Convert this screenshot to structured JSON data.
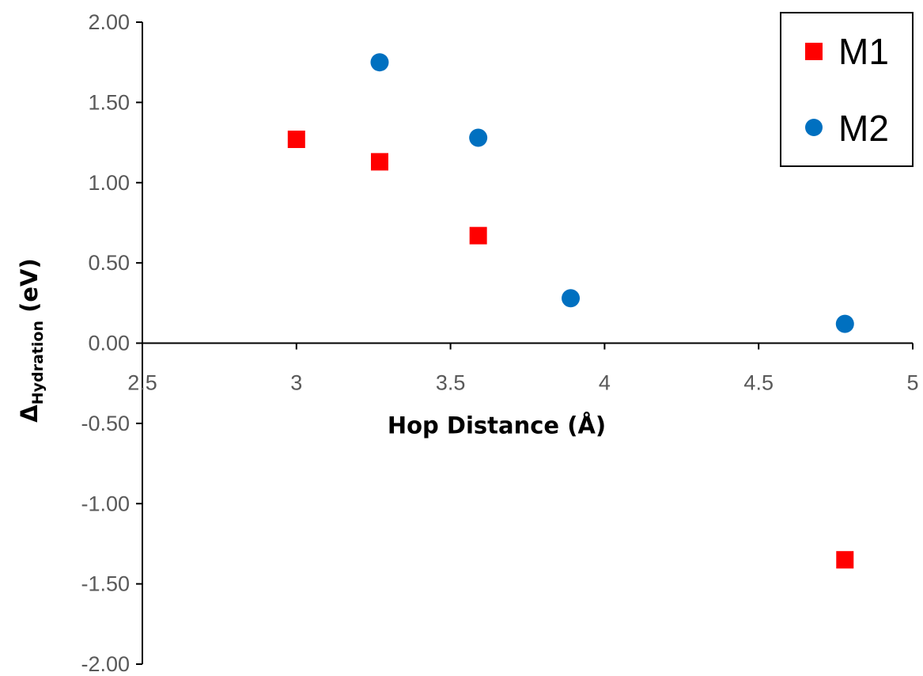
{
  "chart_data": {
    "type": "scatter",
    "xlabel": "Hop Distance (Å)",
    "ylabel": {
      "main": "Δ",
      "sub": "Hydration",
      "suffix": " (eV)"
    },
    "xlim": [
      2.5,
      5
    ],
    "ylim": [
      -2.0,
      2.0
    ],
    "x_ticks": [
      "2.5",
      "3",
      "3.5",
      "4",
      "4.5",
      "5"
    ],
    "y_ticks": [
      "2.00",
      "1.50",
      "1.00",
      "0.50",
      "0.00",
      "-0.50",
      "-1.00",
      "-1.50",
      "-2.00"
    ],
    "grid": false,
    "legend_position": "top-right",
    "series": [
      {
        "name": "M1",
        "marker": "square",
        "color": "#ff0000",
        "points": [
          {
            "x": 3.0,
            "y": 1.27
          },
          {
            "x": 3.27,
            "y": 1.13
          },
          {
            "x": 3.59,
            "y": 0.67
          },
          {
            "x": 4.78,
            "y": -1.35
          }
        ]
      },
      {
        "name": "M2",
        "marker": "circle",
        "color": "#0070c0",
        "points": [
          {
            "x": 3.27,
            "y": 1.75
          },
          {
            "x": 3.59,
            "y": 1.28
          },
          {
            "x": 3.89,
            "y": 0.28
          },
          {
            "x": 4.78,
            "y": 0.12
          }
        ]
      }
    ]
  }
}
